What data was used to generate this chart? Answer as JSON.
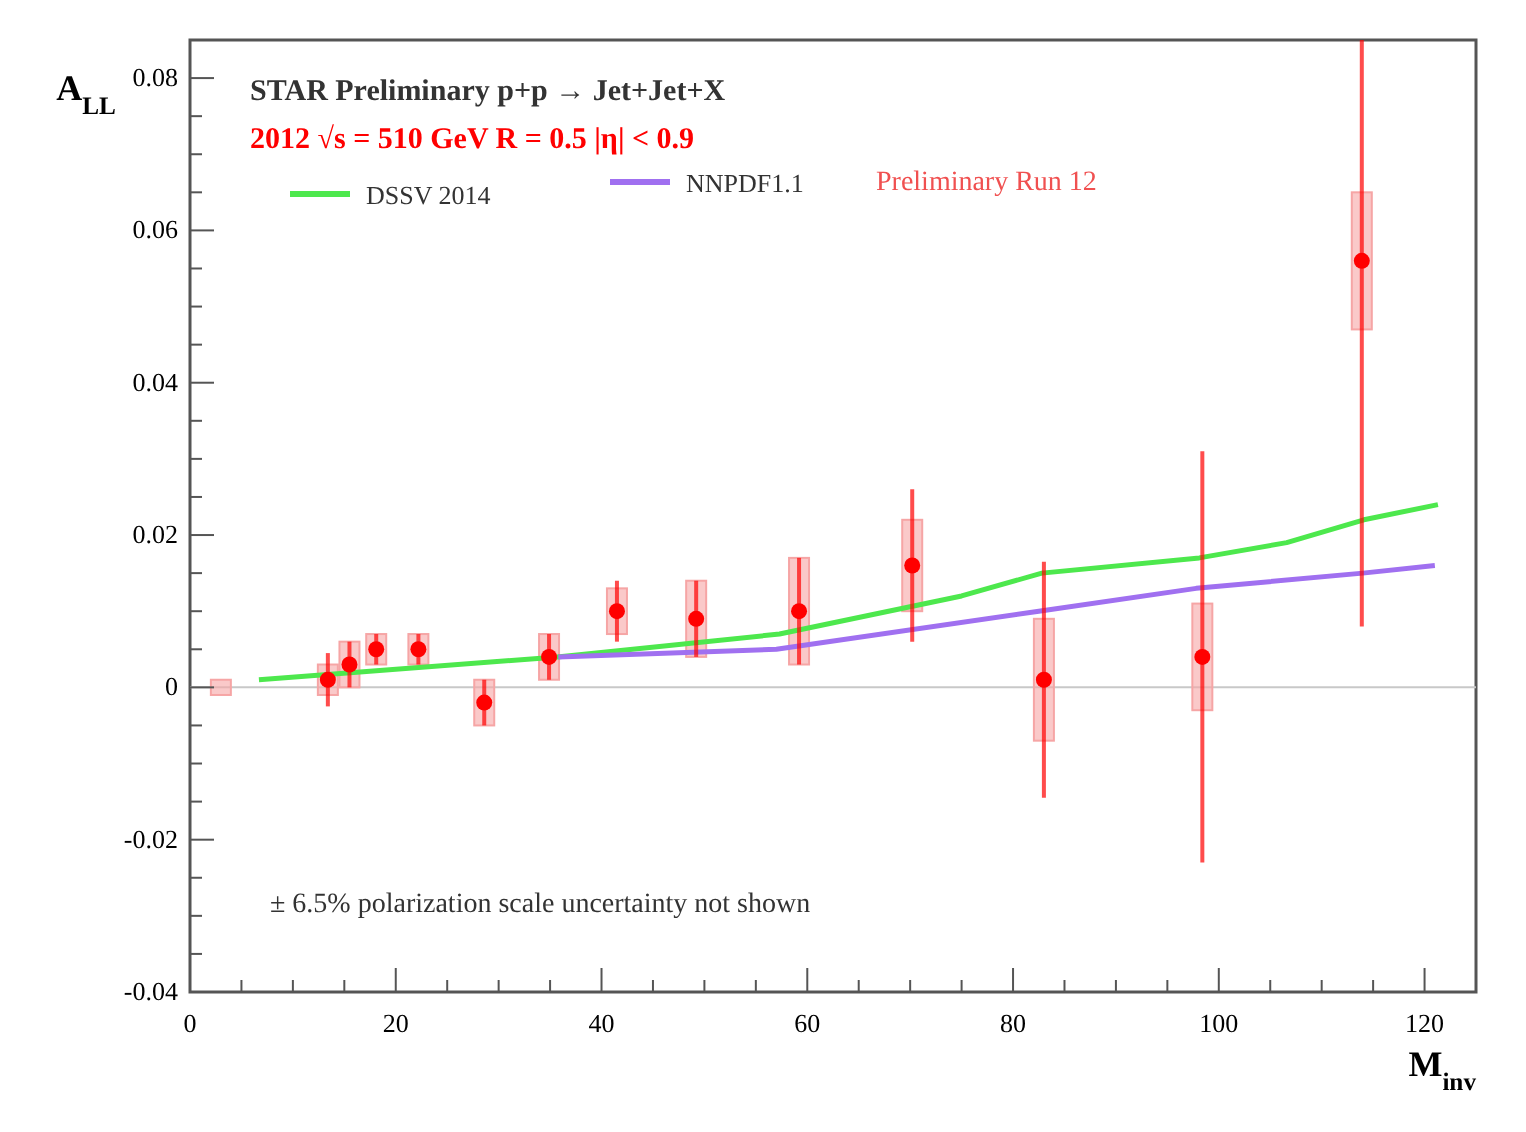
{
  "chart_data": {
    "type": "scatter",
    "title": "STAR Preliminary p+p → Jet+Jet+X",
    "xlabel": "M$_{inv}$",
    "ylabel": "A$_{LL}$",
    "annotations": [
      "Preliminary Run 12",
      "± 6.5% polarization scale uncertainty not shown"
    ],
    "xlim": [
      0,
      125
    ],
    "ylim": [
      -0.04,
      0.085
    ],
    "xticks": [
      0,
      {
        "value": 5,
        "label": null
      },
      {
        "value": 10,
        "label": null
      },
      {
        "value": 15,
        "label": null
      },
      20,
      {
        "value": 25,
        "label": null
      },
      {
        "value": 30,
        "label": null
      },
      {
        "value": 35,
        "label": null
      },
      40,
      {
        "value": 45,
        "label": null
      },
      {
        "value": 50,
        "label": null
      },
      {
        "value": 55,
        "label": null
      },
      60,
      {
        "value": 65,
        "label": null
      },
      {
        "value": 70,
        "label": null
      },
      {
        "value": 75,
        "label": null
      },
      80,
      {
        "value": 85,
        "label": null
      },
      {
        "value": 90,
        "label": null
      },
      {
        "value": 95,
        "label": null
      },
      100,
      {
        "value": 105,
        "label": null
      },
      {
        "value": 110,
        "label": null
      },
      {
        "value": 115,
        "label": null
      },
      120
    ],
    "yticks": [
      -0.04,
      {
        "value": -0.035,
        "label": null
      },
      {
        "value": -0.03,
        "label": null
      },
      {
        "value": -0.025,
        "label": null
      },
      -0.02,
      {
        "value": -0.015,
        "label": null
      },
      {
        "value": -0.01,
        "label": null
      },
      {
        "value": -0.005,
        "label": null
      },
      0,
      {
        "value": 0.005,
        "label": null
      },
      {
        "value": 0.01,
        "label": null
      },
      {
        "value": 0.015,
        "label": null
      },
      0.02,
      {
        "value": 0.025,
        "label": null
      },
      {
        "value": 0.03,
        "label": null
      },
      {
        "value": 0.035,
        "label": null
      },
      0.04,
      {
        "value": 0.045,
        "label": null
      },
      {
        "value": 0.05,
        "label": null
      },
      {
        "value": 0.055,
        "label": null
      },
      0.06,
      {
        "value": 0.065,
        "label": null
      },
      {
        "value": 0.07,
        "label": null
      },
      {
        "value": 0.075,
        "label": null
      },
      0.08
    ],
    "grid": false,
    "legend": "top left",
    "line_style": "solid",
    "ref_lines": [
      {
        "axis": "y",
        "value": 0,
        "color": "#c8c8c8"
      }
    ],
    "series": [
      {
        "type": "bar",
        "color": "#f6a5a5",
        "x": [
          3,
          13.4,
          15.5,
          18.1,
          22.2,
          28.6,
          34.9,
          41.5,
          49.2,
          59.2,
          70.2,
          83.0,
          98.4,
          113.9
        ],
        "base": [
          -0.001,
          -0.001,
          0,
          0.003,
          0.003,
          -0.005,
          0.001,
          0.007,
          0.004,
          0.003,
          0.01,
          -0.007,
          -0.003,
          0.047
        ],
        "values": [
          0.002,
          0.004,
          0.006,
          0.004,
          0.004,
          0.006,
          0.006,
          0.006,
          0.01,
          0.014,
          0.012,
          0.016,
          0.014,
          0.018
        ]
      },
      {
        "type": "line",
        "name": "DSSV 2014",
        "color": "#4de84d",
        "x": [
          6.7,
          35.7,
          57.3,
          75,
          82.8,
          98.1,
          106.6,
          114.1,
          121.3
        ],
        "values": [
          0.001,
          0.004,
          0.007,
          0.012,
          0.015,
          0.017,
          0.019,
          0.022,
          0.024
        ]
      },
      {
        "type": "line",
        "name": "NNPDF1.1",
        "color": "#a070f0",
        "x": [
          35.8,
          57,
          82.5,
          97.8,
          114,
          121
        ],
        "values": [
          0.004,
          0.005,
          0.01,
          0.013,
          0.015,
          0.016
        ]
      },
      {
        "marker": "circle",
        "name": "2012  √s = 510 GeV R = 0.5  |η| < 0.9",
        "color": "#ff0000",
        "x": [
          13.4,
          15.5,
          18.1,
          22.2,
          28.6,
          34.9,
          41.5,
          49.2,
          59.2,
          70.2,
          83.0,
          98.4,
          113.9
        ],
        "values": [
          0.001,
          0.003,
          0.005,
          0.005,
          -0.002,
          0.004,
          0.01,
          0.009,
          0.01,
          0.016,
          0.001,
          0.004,
          0.056
        ],
        "errors": [
          0.0035,
          0.003,
          0.002,
          0.002,
          0.003,
          0.003,
          0.004,
          0.005,
          0.007,
          0.01,
          0.0155,
          0.027,
          [
            0.008,
            0.085
          ]
        ]
      }
    ]
  }
}
